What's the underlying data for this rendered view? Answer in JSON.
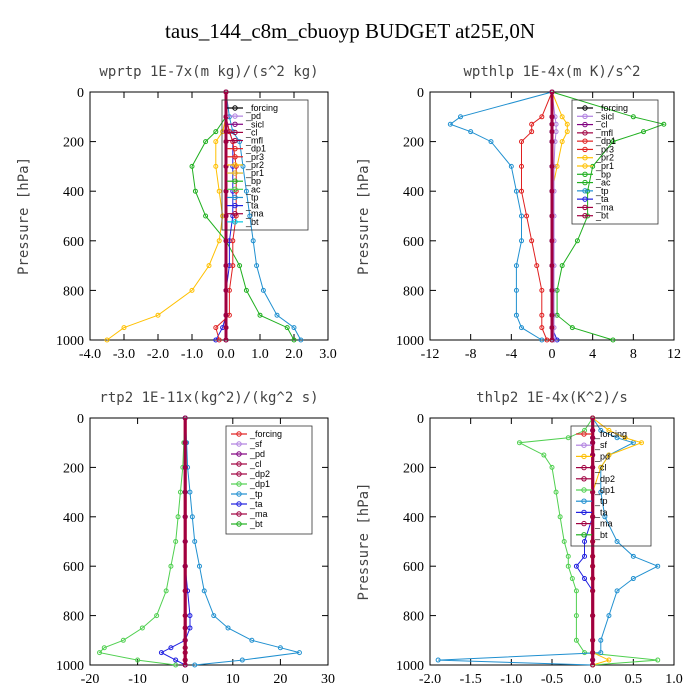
{
  "figure_title": "taus_144_c8m_cbuoyp  BUDGET at25E,0N",
  "chart_data": [
    {
      "type": "line",
      "title": "wprtp  1E-7x(m kg)/(s^2 kg)",
      "ylabel": "Pressure [hPa]",
      "xlim": [
        -4.0,
        3.0
      ],
      "ylim": [
        1000,
        0
      ],
      "xticks": [
        "-4.0",
        "-3.0",
        "-2.0",
        "-1.0",
        "0.0",
        "1.0",
        "2.0",
        "3.0"
      ],
      "yticks": [
        "0",
        "200",
        "400",
        "600",
        "800",
        "1000"
      ],
      "pressure": [
        0,
        100,
        160,
        200,
        300,
        400,
        500,
        600,
        700,
        800,
        900,
        950,
        1000
      ],
      "legend": [
        "_forcing",
        "_pd",
        "_sicl",
        "_cl",
        "_mfl",
        "_dp1",
        "_pr3",
        "_pr2",
        "_pr1",
        "_bp",
        "_ac",
        "_tp",
        "_ta",
        "_ma",
        "_bt"
      ],
      "series": [
        {
          "name": "_forcing",
          "color": "#000000",
          "x": [
            0,
            0,
            0,
            0,
            0,
            0,
            0,
            0,
            0,
            0,
            0,
            0,
            0
          ]
        },
        {
          "name": "_pr2",
          "color": "#ffc000",
          "x": [
            0,
            0,
            -0.1,
            -0.3,
            -0.3,
            -0.2,
            -0.1,
            -0.2,
            -0.5,
            -1.0,
            -2.0,
            -3.0,
            -3.5
          ]
        },
        {
          "name": "_bp",
          "color": "#20b020",
          "x": [
            0,
            0,
            -0.3,
            -0.6,
            -1.0,
            -0.9,
            -0.6,
            0.0,
            0.4,
            0.6,
            1.0,
            1.8,
            2.0
          ]
        },
        {
          "name": "_tp",
          "color": "#2090d0",
          "x": [
            0,
            0.1,
            0.2,
            0.4,
            0.5,
            0.6,
            0.7,
            0.8,
            0.9,
            1.1,
            1.5,
            2.0,
            2.2
          ]
        },
        {
          "name": "_ta",
          "color": "#2020e0",
          "x": [
            0,
            0,
            0.1,
            0.2,
            0.2,
            0.2,
            0.2,
            0.1,
            0.1,
            0,
            0,
            -0.1,
            -0.3
          ]
        },
        {
          "name": "_dp1",
          "color": "#e02020",
          "x": [
            0,
            0,
            0.1,
            0.2,
            0.3,
            0.3,
            0.3,
            0.2,
            0.2,
            0.1,
            0.1,
            -0.3,
            -0.2
          ]
        },
        {
          "name": "_pd",
          "color": "#b080e0",
          "x": [
            0,
            0,
            0,
            0,
            0,
            0,
            0,
            0,
            0,
            0,
            0,
            0,
            0
          ]
        },
        {
          "name": "_ma",
          "color": "#a00040",
          "x": [
            0,
            0,
            0,
            0,
            0,
            0,
            0,
            0,
            0,
            0,
            0,
            0,
            0
          ]
        }
      ]
    },
    {
      "type": "line",
      "title": "wpthlp  1E-4x(m K)/s^2",
      "ylabel": "Pressure [hPa]",
      "xlim": [
        -12,
        12
      ],
      "ylim": [
        1000,
        0
      ],
      "xticks": [
        "-12",
        "-8",
        "-4",
        "0",
        "4",
        "8",
        "12"
      ],
      "yticks": [
        "0",
        "200",
        "400",
        "600",
        "800",
        "1000"
      ],
      "pressure": [
        0,
        100,
        130,
        160,
        200,
        300,
        400,
        500,
        600,
        700,
        800,
        900,
        950,
        1000
      ],
      "legend": [
        "_forcing",
        "_sicl",
        "_cl",
        "_mfl",
        "_dp1",
        "_pr3",
        "_pr2",
        "_pr1",
        "_bp",
        "_ac",
        "_tp",
        "_ta",
        "_ma",
        "_bt"
      ],
      "series": [
        {
          "name": "_forcing",
          "color": "#000000",
          "x": [
            0,
            0,
            0,
            0,
            0,
            0,
            0,
            0,
            0,
            0,
            0,
            0,
            0,
            0
          ]
        },
        {
          "name": "_bp",
          "color": "#20b020",
          "x": [
            0,
            8,
            11,
            9,
            6,
            4,
            3.5,
            3.5,
            2.5,
            1,
            0.5,
            0.5,
            2,
            6
          ]
        },
        {
          "name": "_tp",
          "color": "#2090d0",
          "x": [
            0,
            -9,
            -10,
            -8,
            -6,
            -4,
            -3.5,
            -3,
            -3,
            -3.5,
            -3.5,
            -3.5,
            -3,
            -1
          ]
        },
        {
          "name": "_dp1",
          "color": "#e02020",
          "x": [
            0,
            -1,
            -2,
            -2,
            -3,
            -3,
            -3,
            -2.5,
            -2,
            -1.5,
            -1,
            -1,
            -1,
            -0.5
          ]
        },
        {
          "name": "_pr2",
          "color": "#ffc000",
          "x": [
            0,
            1,
            1.5,
            1.5,
            1,
            0.5,
            0,
            0,
            0,
            0,
            0,
            0,
            0,
            0
          ]
        },
        {
          "name": "_ta",
          "color": "#2020e0",
          "x": [
            0,
            0,
            0,
            0,
            0,
            0,
            0,
            0,
            0,
            0,
            0,
            0,
            0,
            0.5
          ]
        },
        {
          "name": "_sicl",
          "color": "#b080e0",
          "x": [
            0,
            0.3,
            0.4,
            0.4,
            0.3,
            0.2,
            0.2,
            0.2,
            0.2,
            0.2,
            0.2,
            0.2,
            0.2,
            0.2
          ]
        },
        {
          "name": "_ma",
          "color": "#a00040",
          "x": [
            0,
            0,
            0,
            0,
            0,
            0,
            0,
            0,
            0,
            0,
            0,
            0,
            0,
            0
          ]
        }
      ]
    },
    {
      "type": "line",
      "title": "rtp2  1E-11x(kg^2)/(kg^2 s)",
      "ylabel": "",
      "xlim": [
        -20,
        30
      ],
      "ylim": [
        1000,
        0
      ],
      "xticks": [
        "-20",
        "-10",
        "0",
        "10",
        "20",
        "30"
      ],
      "yticks": [
        "0",
        "200",
        "400",
        "600",
        "800",
        "1000"
      ],
      "pressure": [
        0,
        100,
        200,
        300,
        400,
        500,
        600,
        700,
        800,
        850,
        900,
        930,
        950,
        980,
        1000
      ],
      "legend": [
        "_forcing",
        "_sf",
        "_pd",
        "_cl",
        "_dp2",
        "_dp1",
        "_tp",
        "_ta",
        "_ma",
        "_bt"
      ],
      "series": [
        {
          "name": "_forcing",
          "color": "#e02020",
          "x": [
            0,
            0,
            0,
            0,
            0,
            0,
            0,
            0,
            0,
            0,
            0,
            0,
            0,
            0,
            0
          ]
        },
        {
          "name": "_dp1",
          "color": "#50d050",
          "x": [
            0,
            -0.3,
            -0.5,
            -1,
            -1.5,
            -2,
            -3,
            -4,
            -6,
            -9,
            -13,
            -17,
            -18,
            -10,
            -2
          ]
        },
        {
          "name": "_tp",
          "color": "#2090d0",
          "x": [
            0,
            0.3,
            0.5,
            1,
            1.5,
            2,
            3,
            4,
            6,
            9,
            14,
            20,
            24,
            12,
            2
          ]
        },
        {
          "name": "_ta",
          "color": "#2020e0",
          "x": [
            0,
            0,
            0,
            0,
            0,
            0,
            0,
            0.5,
            1,
            1,
            0,
            -3,
            -5,
            -2,
            0
          ]
        },
        {
          "name": "_ma",
          "color": "#a00040",
          "x": [
            0,
            0,
            0,
            0,
            0,
            0,
            0,
            0,
            0,
            0,
            0,
            0,
            0,
            0,
            0
          ]
        }
      ]
    },
    {
      "type": "line",
      "title": "thlp2  1E-4x(K^2)/s",
      "ylabel": "Pressure [hPa]",
      "xlim": [
        -2.0,
        1.0
      ],
      "ylim": [
        1000,
        0
      ],
      "xticks": [
        "-2.0",
        "-1.5",
        "-1.0",
        "-0.5",
        "0.0",
        "0.5",
        "1.0"
      ],
      "yticks": [
        "0",
        "200",
        "400",
        "600",
        "800",
        "1000"
      ],
      "pressure": [
        0,
        50,
        80,
        100,
        150,
        200,
        300,
        400,
        500,
        560,
        600,
        650,
        700,
        800,
        900,
        950,
        980,
        1000
      ],
      "legend": [
        "_forcing",
        "_sf",
        "_pd",
        "_cl",
        "_dp2",
        "_dp1",
        "_tp",
        "_ta",
        "_ma",
        "_bt"
      ],
      "series": [
        {
          "name": "_forcing",
          "color": "#e02020",
          "x": [
            0,
            0,
            0,
            0,
            0,
            0,
            0,
            0,
            0,
            0,
            0,
            0,
            0,
            0,
            0,
            0,
            0,
            0
          ]
        },
        {
          "name": "_dp1",
          "color": "#50d050",
          "x": [
            0,
            -0.1,
            -0.3,
            -0.9,
            -0.6,
            -0.5,
            -0.45,
            -0.4,
            -0.35,
            -0.3,
            -0.3,
            -0.25,
            -0.2,
            -0.2,
            -0.2,
            -0.1,
            0.8,
            0
          ]
        },
        {
          "name": "_tp",
          "color": "#2090d0",
          "x": [
            0,
            0.1,
            0.3,
            0.5,
            0.2,
            0.1,
            0.1,
            0.15,
            0.3,
            0.5,
            0.8,
            0.5,
            0.3,
            0.2,
            0.1,
            0.1,
            -1.9,
            0
          ]
        },
        {
          "name": "_ta",
          "color": "#2020e0",
          "x": [
            0,
            0,
            0,
            0,
            0,
            0,
            0,
            0,
            -0.1,
            -0.1,
            -0.2,
            -0.1,
            0,
            0,
            0,
            0,
            0,
            0
          ]
        },
        {
          "name": "_pd",
          "color": "#ffc000",
          "x": [
            0,
            0.2,
            0.4,
            0.6,
            0.2,
            0.1,
            0,
            0,
            0,
            0,
            0,
            0,
            0,
            0,
            0,
            0,
            0.2,
            0
          ]
        },
        {
          "name": "_ma",
          "color": "#a00040",
          "x": [
            0,
            0,
            0,
            0,
            0,
            0,
            0,
            0,
            0,
            0,
            0,
            0,
            0,
            0,
            0,
            0,
            0,
            0
          ]
        }
      ]
    }
  ]
}
